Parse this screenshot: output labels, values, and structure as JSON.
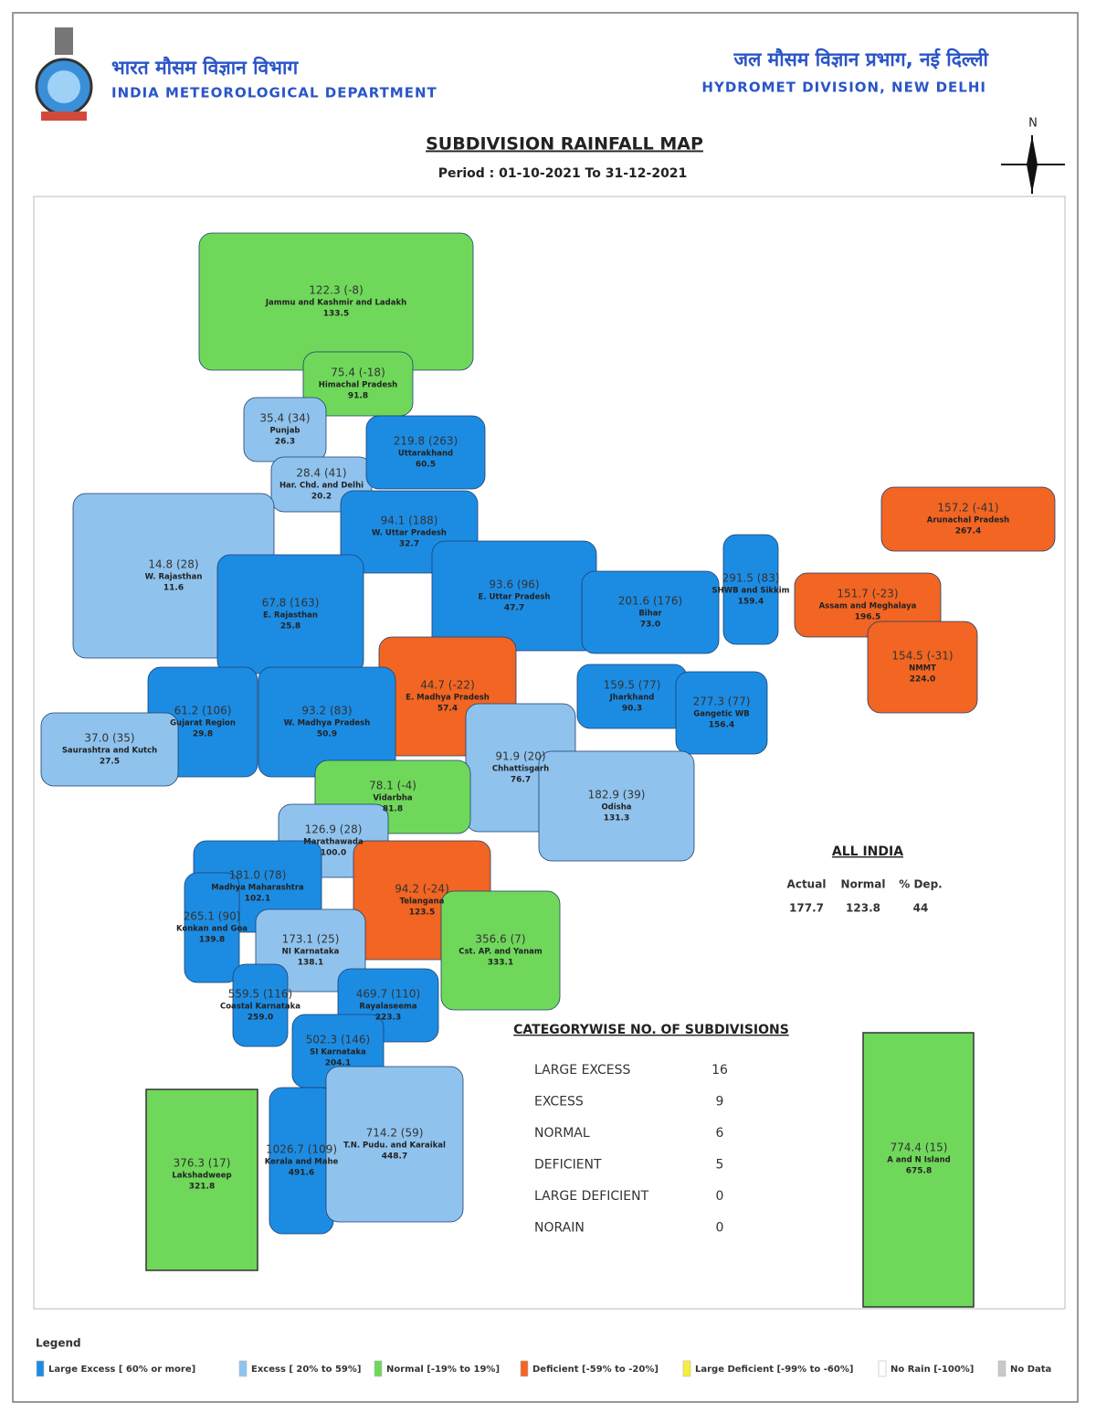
{
  "header": {
    "hindi_left": "भारत मौसम विज्ञान विभाग",
    "department": "INDIA METEOROLOGICAL DEPARTMENT",
    "hindi_right": "जल मौसम विज्ञान प्रभाग, नई दिल्ली",
    "division": "HYDROMET DIVISION, NEW DELHI",
    "title": "SUBDIVISION RAINFALL MAP",
    "period": "Period : 01-10-2021 To 31-12-2021",
    "north": "N"
  },
  "subdivisions": [
    {
      "stat": "122.3 (-8)",
      "name": "Jammu and Kashmir and Ladakh",
      "normal": "133.5",
      "color": "#6fd85a"
    },
    {
      "stat": "75.4 (-18)",
      "name": "Himachal Pradesh",
      "normal": "91.8",
      "color": "#6fd85a"
    },
    {
      "stat": "35.4 (34)",
      "name": "Punjab",
      "normal": "26.3",
      "color": "#8fc3ee"
    },
    {
      "stat": "28.4 (41)",
      "name": "Har. Chd. and Delhi",
      "normal": "20.2",
      "color": "#8fc3ee"
    },
    {
      "stat": "219.8 (263)",
      "name": "Uttarakhand",
      "normal": "60.5",
      "color": "#1c8ce3"
    },
    {
      "stat": "94.1 (188)",
      "name": "W. Uttar Pradesh",
      "normal": "32.7",
      "color": "#1c8ce3"
    },
    {
      "stat": "14.8 (28)",
      "name": "W. Rajasthan",
      "normal": "11.6",
      "color": "#8fc3ee"
    },
    {
      "stat": "67.8 (163)",
      "name": "E. Rajasthan",
      "normal": "25.8",
      "color": "#1c8ce3"
    },
    {
      "stat": "93.6 (96)",
      "name": "E. Uttar Pradesh",
      "normal": "47.7",
      "color": "#1c8ce3"
    },
    {
      "stat": "201.6 (176)",
      "name": "Bihar",
      "normal": "73.0",
      "color": "#1c8ce3"
    },
    {
      "stat": "291.5 (83)",
      "name": "SHWB and Sikkim",
      "normal": "159.4",
      "color": "#1c8ce3"
    },
    {
      "stat": "151.7 (-23)",
      "name": "Assam and Meghalaya",
      "normal": "196.5",
      "color": "#f26522"
    },
    {
      "stat": "157.2 (-41)",
      "name": "Arunachal Pradesh",
      "normal": "267.4",
      "color": "#f26522"
    },
    {
      "stat": "154.5 (-31)",
      "name": "NMMT",
      "normal": "224.0",
      "color": "#f26522"
    },
    {
      "stat": "44.7 (-22)",
      "name": "E. Madhya Pradesh",
      "normal": "57.4",
      "color": "#f26522"
    },
    {
      "stat": "93.2 (83)",
      "name": "W. Madhya Pradesh",
      "normal": "50.9",
      "color": "#1c8ce3"
    },
    {
      "stat": "61.2 (106)",
      "name": "Gujarat Region",
      "normal": "29.8",
      "color": "#1c8ce3"
    },
    {
      "stat": "37.0 (35)",
      "name": "Saurashtra and Kutch",
      "normal": "27.5",
      "color": "#8fc3ee"
    },
    {
      "stat": "159.5 (77)",
      "name": "Jharkhand",
      "normal": "90.3",
      "color": "#1c8ce3"
    },
    {
      "stat": "277.3 (77)",
      "name": "Gangetic WB",
      "normal": "156.4",
      "color": "#1c8ce3"
    },
    {
      "stat": "91.9 (20)",
      "name": "Chhattisgarh",
      "normal": "76.7",
      "color": "#8fc3ee"
    },
    {
      "stat": "182.9 (39)",
      "name": "Odisha",
      "normal": "131.3",
      "color": "#8fc3ee"
    },
    {
      "stat": "78.1 (-4)",
      "name": "Vidarbha",
      "normal": "81.8",
      "color": "#6fd85a"
    },
    {
      "stat": "126.9 (28)",
      "name": "Marathawada",
      "normal": "100.0",
      "color": "#8fc3ee"
    },
    {
      "stat": "181.0 (78)",
      "name": "Madhya Maharashtra",
      "normal": "102.1",
      "color": "#1c8ce3"
    },
    {
      "stat": "94.2 (-24)",
      "name": "Telangana",
      "normal": "123.5",
      "color": "#f26522"
    },
    {
      "stat": "265.1 (90)",
      "name": "Konkan and Goa",
      "normal": "139.8",
      "color": "#1c8ce3"
    },
    {
      "stat": "173.1 (25)",
      "name": "NI Karnataka",
      "normal": "138.1",
      "color": "#8fc3ee"
    },
    {
      "stat": "356.6 (7)",
      "name": "Cst. AP. and Yanam",
      "normal": "333.1",
      "color": "#6fd85a"
    },
    {
      "stat": "559.5 (116)",
      "name": "Coastal Karnataka",
      "normal": "259.0",
      "color": "#1c8ce3"
    },
    {
      "stat": "469.7 (110)",
      "name": "Rayalaseema",
      "normal": "223.3",
      "color": "#1c8ce3"
    },
    {
      "stat": "502.3 (146)",
      "name": "SI Karnataka",
      "normal": "204.1",
      "color": "#1c8ce3"
    },
    {
      "stat": "1026.7 (109)",
      "name": "Kerala and Mahe",
      "normal": "491.6",
      "color": "#1c8ce3"
    },
    {
      "stat": "714.2 (59)",
      "name": "T.N. Pudu. and Karaikal",
      "normal": "448.7",
      "color": "#8fc3ee"
    },
    {
      "stat": "376.3 (17)",
      "name": "Lakshadweep",
      "normal": "321.8",
      "color": "#6fd85a"
    },
    {
      "stat": "774.4 (15)",
      "name": "A and N Island",
      "normal": "675.8",
      "color": "#6fd85a"
    }
  ],
  "all_india": {
    "title": "ALL INDIA",
    "headers": [
      "Actual",
      "Normal",
      "% Dep."
    ],
    "values": [
      177.7,
      123.8,
      44
    ]
  },
  "category_counts": {
    "title": "CATEGORYWISE NO. OF SUBDIVISIONS",
    "rows": [
      {
        "label": "LARGE EXCESS",
        "count": 16
      },
      {
        "label": "EXCESS",
        "count": 9
      },
      {
        "label": "NORMAL",
        "count": 6
      },
      {
        "label": "DEFICIENT",
        "count": 5
      },
      {
        "label": "LARGE DEFICIENT",
        "count": 0
      },
      {
        "label": "NORAIN",
        "count": 0
      }
    ]
  },
  "legend": {
    "title": "Legend",
    "items": [
      {
        "label": "Large Excess [ 60% or more]",
        "color": "#1c8ce3"
      },
      {
        "label": "Excess [ 20% to 59%]",
        "color": "#8fc3ee"
      },
      {
        "label": "Normal [-19% to 19%]",
        "color": "#6fd85a"
      },
      {
        "label": "Deficient [-59% to -20%]",
        "color": "#f26522"
      },
      {
        "label": "Large Deficient [-99% to -60%]",
        "color": "#f5ee3a"
      },
      {
        "label": "No Rain [-100%]",
        "color": "#ffffff"
      },
      {
        "label": "No Data",
        "color": "#c8c8c8"
      }
    ]
  }
}
